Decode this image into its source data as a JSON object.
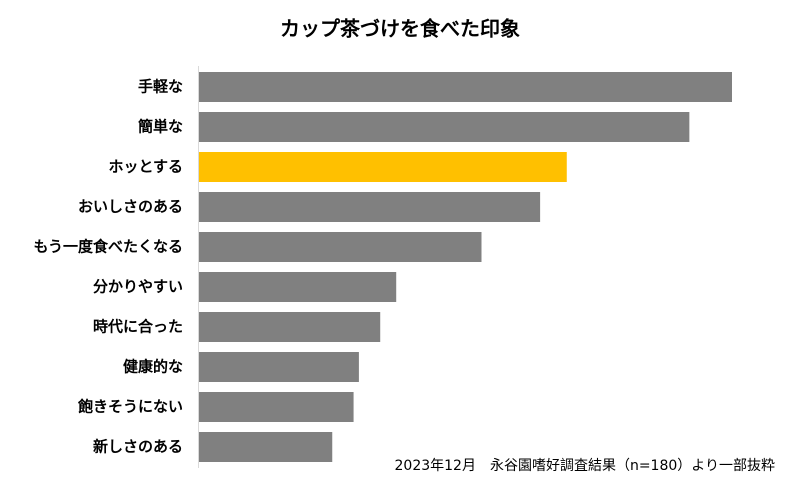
{
  "chart_data": {
    "type": "hbar",
    "title": "カップ茶づけを食べた印象",
    "categories": [
      "手軽な",
      "簡単な",
      "ホッとする",
      "おいしさのある",
      "もう一度食べたくなる",
      "分かりやすい",
      "時代に合った",
      "健康的な",
      "飽きそうにない",
      "新しさのある"
    ],
    "values": [
      100,
      92,
      69,
      64,
      53,
      37,
      34,
      30,
      29,
      25
    ],
    "colors": [
      "#808080",
      "#808080",
      "#ffc000",
      "#808080",
      "#808080",
      "#808080",
      "#808080",
      "#808080",
      "#808080",
      "#808080"
    ],
    "note": "2023年12月　永谷園嗜好調査結果（n=180）より一部抜粋"
  }
}
